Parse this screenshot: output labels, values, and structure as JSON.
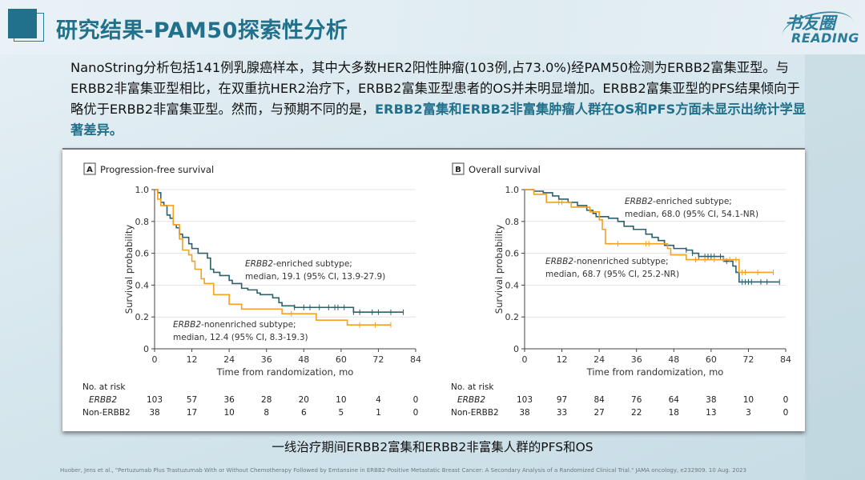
{
  "header": {
    "title": "研究结果-PAM50探索性分析",
    "logo_cn": "书友圈",
    "logo_en": "READING"
  },
  "paragraph": {
    "text": "NanoString分析包括141例乳腺癌样本，其中大多数HER2阳性肿瘤(103例,占73.0%)经PAM50检测为ERBB2富集亚型。与ERBB2非富集亚型相比，在双重抗HER2治疗下，ERBB2富集亚型患者的OS并未明显增加。ERBB2富集亚型的PFS结果倾向于略优于ERBB2非富集亚型。然而，与预期不同的是，",
    "highlight": "ERBB2富集和ERBB2非富集肿瘤人群在OS和PFS方面未显示出统计学显著差异。"
  },
  "colors": {
    "accent": "#22718c",
    "enriched": "#2f5f6b",
    "nonenriched": "#f5a020"
  },
  "chart_data": [
    {
      "type": "line",
      "panel": "A",
      "title": "Progression-free survival",
      "xlabel": "Time from randomization, mo",
      "ylabel": "Survival probability",
      "xlim": [
        0,
        84
      ],
      "ylim": [
        0,
        1
      ],
      "xticks": [
        0,
        12,
        24,
        36,
        48,
        60,
        72,
        84
      ],
      "yticks": [
        "0",
        "0.2",
        "0.4",
        "0.6",
        "0.8",
        "1.0"
      ],
      "annotations": [
        {
          "italic": "ERBB2",
          "rest": "-enriched subtype;",
          "line2": "median, 19.1 (95% CI, 13.9-27.9)"
        },
        {
          "italic": "ERBB2",
          "rest": "-nonenriched subtype;",
          "line2": "median, 12.4 (95% CI, 8.3-19.3)"
        }
      ],
      "series": [
        {
          "name": "ERBB2-enriched",
          "color": "#2f5f6b",
          "steps": [
            [
              0,
              1
            ],
            [
              1,
              0.98
            ],
            [
              2,
              0.92
            ],
            [
              3,
              0.9
            ],
            [
              4,
              0.84
            ],
            [
              5,
              0.82
            ],
            [
              6,
              0.78
            ],
            [
              7,
              0.76
            ],
            [
              8,
              0.72
            ],
            [
              9,
              0.7
            ],
            [
              11,
              0.66
            ],
            [
              12,
              0.63
            ],
            [
              14,
              0.6
            ],
            [
              17,
              0.57
            ],
            [
              18,
              0.5
            ],
            [
              19,
              0.48
            ],
            [
              21,
              0.46
            ],
            [
              24,
              0.43
            ],
            [
              25,
              0.41
            ],
            [
              28,
              0.38
            ],
            [
              30,
              0.37
            ],
            [
              33,
              0.35
            ],
            [
              34,
              0.34
            ],
            [
              38,
              0.32
            ],
            [
              40,
              0.29
            ],
            [
              41,
              0.27
            ],
            [
              45,
              0.26
            ],
            [
              64,
              0.23
            ],
            [
              80,
              0.23
            ]
          ],
          "censor": [
            45,
            48,
            50,
            53,
            56,
            58,
            59,
            61,
            64,
            66,
            70,
            72,
            76,
            80
          ]
        },
        {
          "name": "ERBB2-nonenriched",
          "color": "#f5a020",
          "steps": [
            [
              0,
              1
            ],
            [
              1,
              0.94
            ],
            [
              2,
              0.9
            ],
            [
              6,
              0.78
            ],
            [
              8,
              0.69
            ],
            [
              9,
              0.62
            ],
            [
              11,
              0.59
            ],
            [
              12,
              0.55
            ],
            [
              13,
              0.5
            ],
            [
              15,
              0.44
            ],
            [
              16,
              0.41
            ],
            [
              19,
              0.34
            ],
            [
              24,
              0.28
            ],
            [
              28,
              0.25
            ],
            [
              41,
              0.22
            ],
            [
              52,
              0.18
            ],
            [
              62,
              0.15
            ],
            [
              76,
              0.15
            ]
          ],
          "censor": [
            44,
            66,
            71,
            76
          ]
        }
      ],
      "risk": {
        "header": "No. at risk",
        "rows": [
          {
            "label": "ERBB2",
            "values": [
              103,
              57,
              36,
              28,
              20,
              10,
              4,
              0
            ]
          },
          {
            "label": "Non-ERBB2",
            "values": [
              38,
              17,
              10,
              8,
              6,
              5,
              1,
              0
            ]
          }
        ]
      }
    },
    {
      "type": "line",
      "panel": "B",
      "title": "Overall survival",
      "xlabel": "Time from randomization, mo",
      "ylabel": "Survival probability",
      "xlim": [
        0,
        84
      ],
      "ylim": [
        0,
        1
      ],
      "xticks": [
        0,
        12,
        24,
        36,
        48,
        60,
        72,
        84
      ],
      "yticks": [
        "0",
        "0.2",
        "0.4",
        "0.6",
        "0.8",
        "1.0"
      ],
      "annotations": [
        {
          "italic": "ERBB2",
          "rest": "-enriched subtype;",
          "line2": "median, 68.0 (95% CI, 54.1-NR)"
        },
        {
          "italic": "ERBB2",
          "rest": "-nonenriched subtype;",
          "line2": "median, 68.7 (95% CI, 25.2-NR)"
        }
      ],
      "series": [
        {
          "name": "ERBB2-enriched",
          "color": "#2f5f6b",
          "steps": [
            [
              0,
              1
            ],
            [
              3,
              0.99
            ],
            [
              6,
              0.98
            ],
            [
              9,
              0.96
            ],
            [
              11,
              0.94
            ],
            [
              14,
              0.92
            ],
            [
              17,
              0.9
            ],
            [
              20,
              0.87
            ],
            [
              22,
              0.85
            ],
            [
              23,
              0.83
            ],
            [
              27,
              0.82
            ],
            [
              30,
              0.8
            ],
            [
              32,
              0.77
            ],
            [
              35,
              0.75
            ],
            [
              39,
              0.72
            ],
            [
              41,
              0.7
            ],
            [
              43,
              0.68
            ],
            [
              45,
              0.65
            ],
            [
              48,
              0.63
            ],
            [
              52,
              0.62
            ],
            [
              54,
              0.6
            ],
            [
              56,
              0.58
            ],
            [
              63,
              0.58
            ],
            [
              64,
              0.55
            ],
            [
              67,
              0.52
            ],
            [
              68,
              0.48
            ],
            [
              69,
              0.42
            ],
            [
              82,
              0.42
            ]
          ],
          "censor": [
            52,
            54,
            56,
            58,
            59,
            60,
            61,
            63,
            65,
            70,
            71,
            72,
            73,
            76,
            78,
            82
          ]
        },
        {
          "name": "ERBB2-nonenriched",
          "color": "#f5a020",
          "steps": [
            [
              0,
              1
            ],
            [
              3,
              0.97
            ],
            [
              7,
              0.92
            ],
            [
              15,
              0.89
            ],
            [
              21,
              0.86
            ],
            [
              24,
              0.81
            ],
            [
              25,
              0.75
            ],
            [
              26,
              0.66
            ],
            [
              46,
              0.63
            ],
            [
              47,
              0.59
            ],
            [
              52,
              0.56
            ],
            [
              68,
              0.56
            ],
            [
              69,
              0.48
            ],
            [
              80,
              0.48
            ]
          ],
          "censor": [
            11,
            12,
            30,
            39,
            40,
            55,
            58,
            61,
            64,
            66,
            68,
            70,
            71,
            75,
            80
          ]
        }
      ],
      "risk": {
        "header": "No. at risk",
        "rows": [
          {
            "label": "ERBB2",
            "values": [
              103,
              97,
              84,
              76,
              64,
              38,
              10,
              0
            ]
          },
          {
            "label": "Non-ERBB2",
            "values": [
              38,
              33,
              27,
              22,
              18,
              13,
              3,
              0
            ]
          }
        ]
      }
    }
  ],
  "caption": "一线治疗期间ERBB2富集和ERBB2非富集人群的PFS和OS",
  "footnote": "Huober, Jens et al., \"Pertuzumab Plus Trastuzumab With or Without Chemotherapy Followed by Emtansine in ERBB2-Positive Metastatic Breast Cancer: A Secondary Analysis of a Randomized Clinical Trial.\" JAMA oncology, e232909. 10 Aug. 2023"
}
